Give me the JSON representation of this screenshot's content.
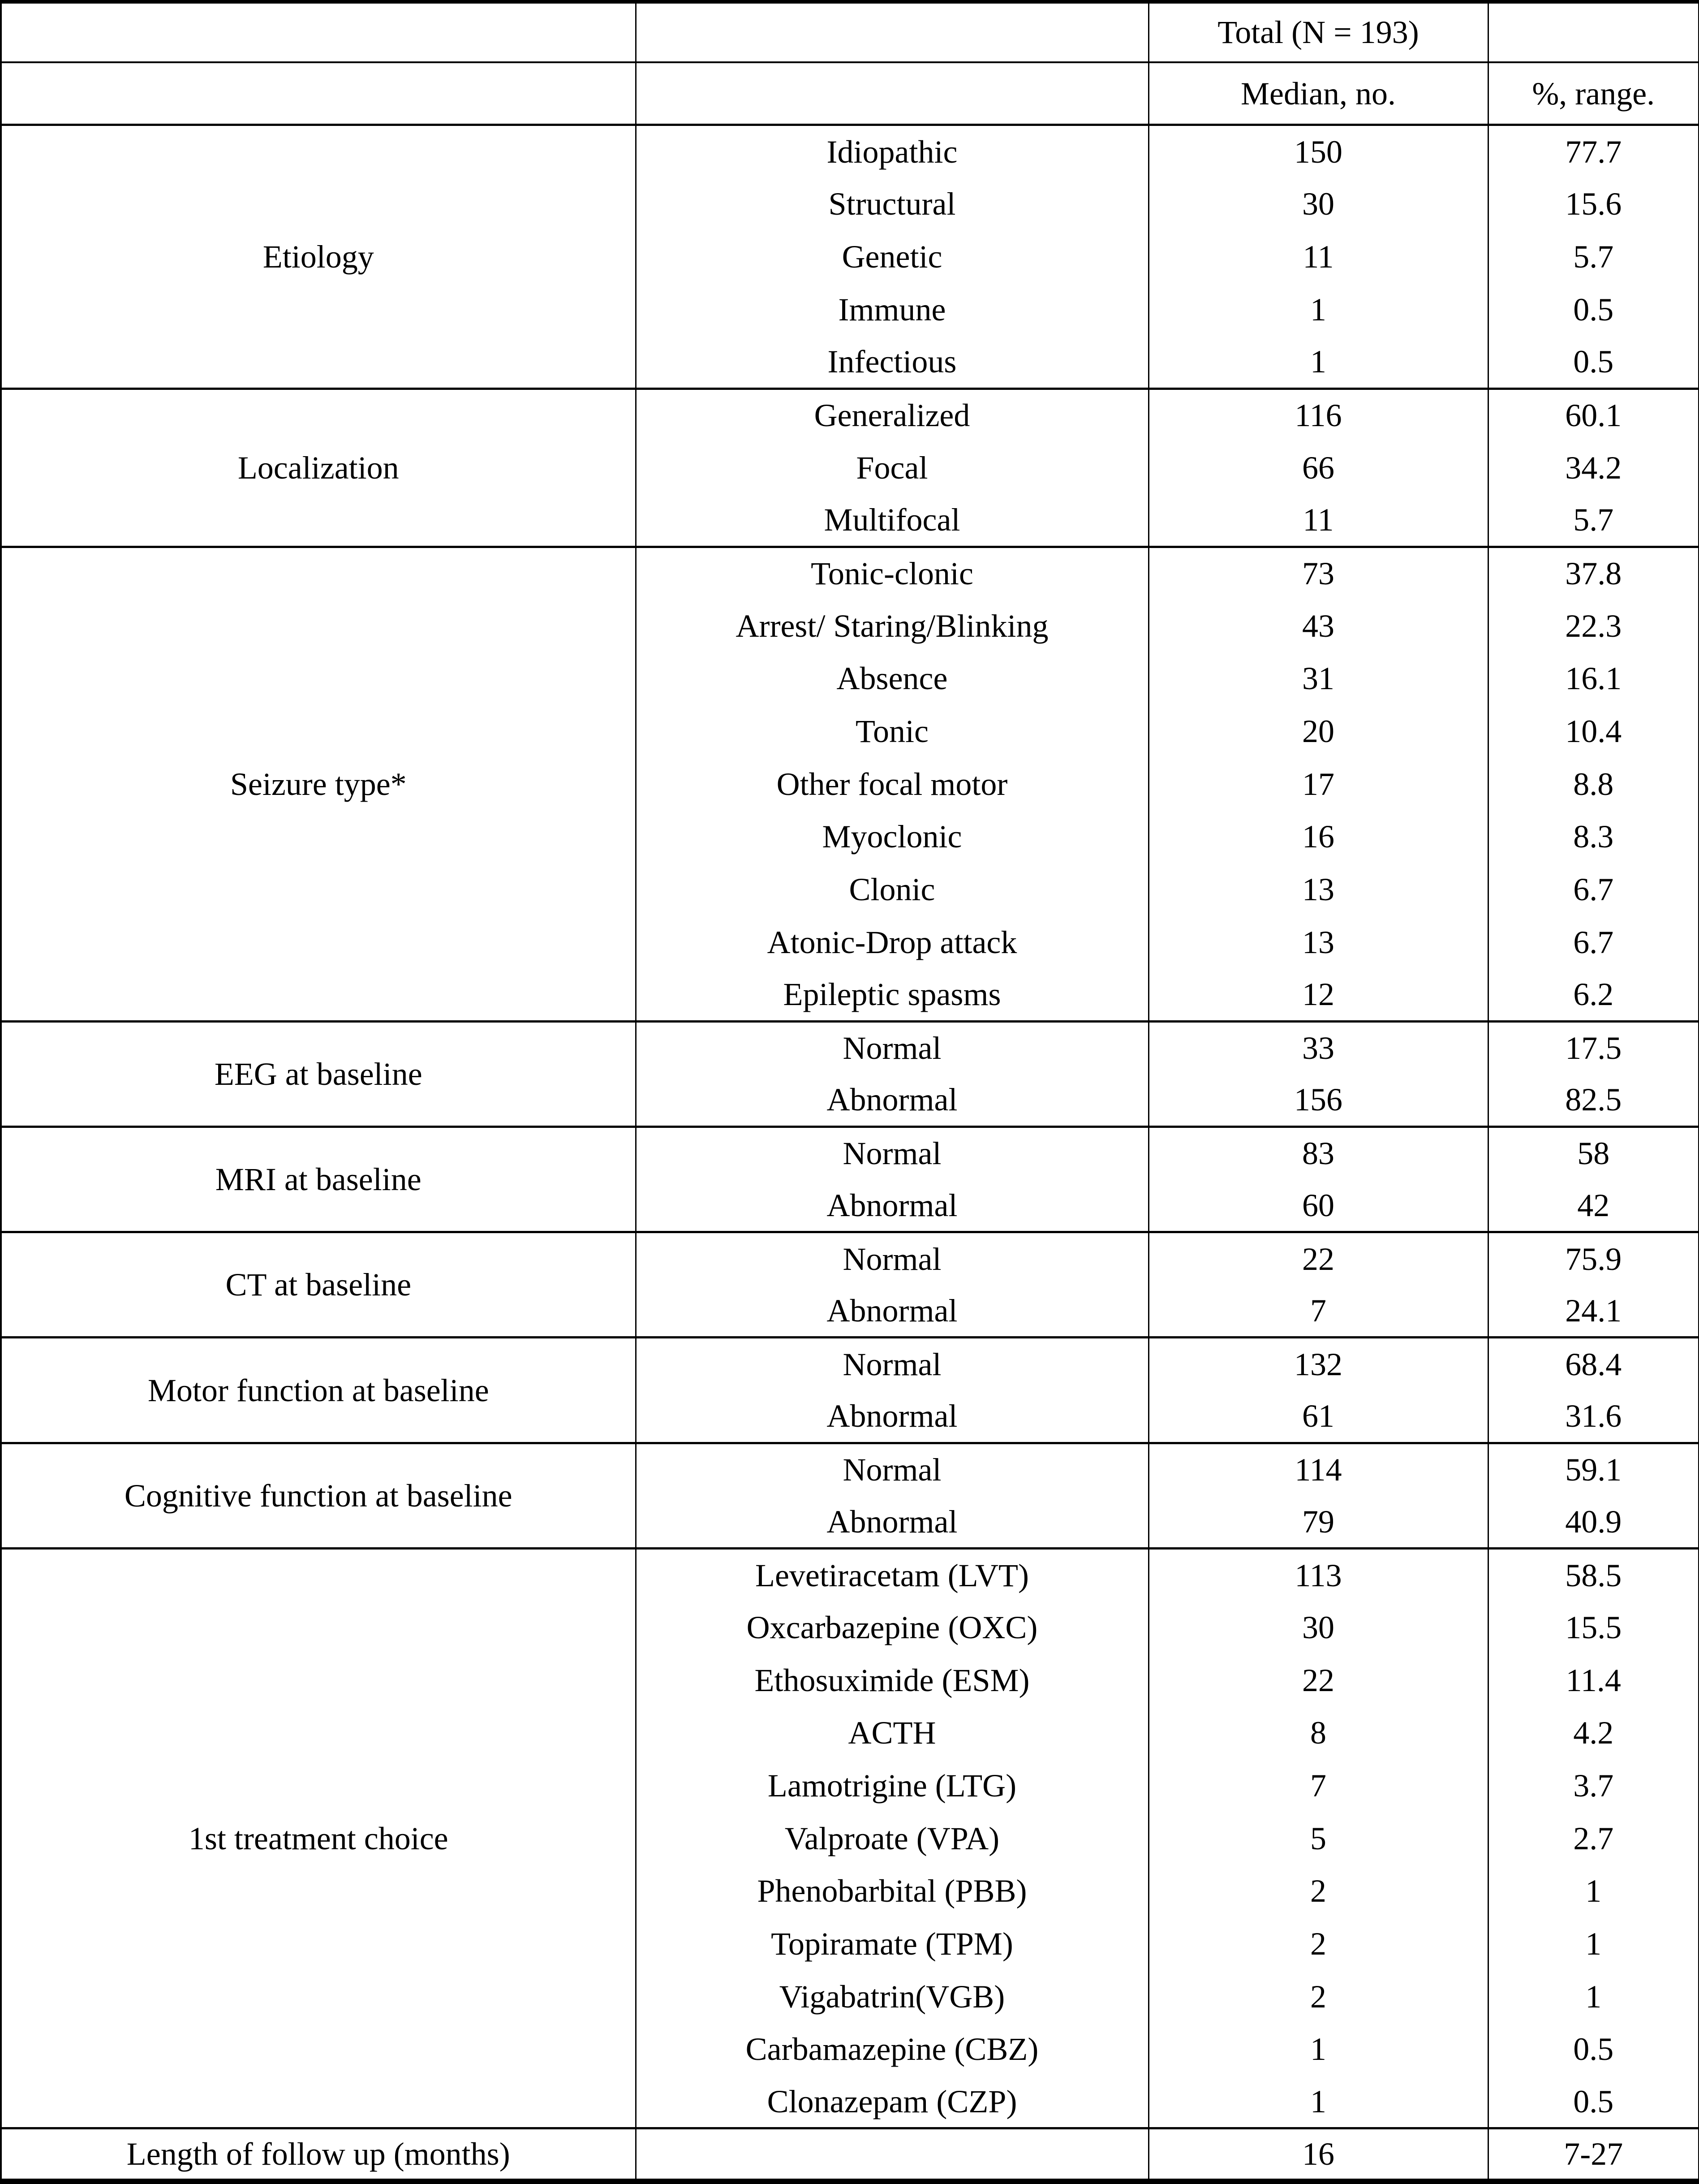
{
  "table": {
    "header": {
      "total_label": "Total (N = 193)",
      "col_median": "Median, no.",
      "col_percent": "%, range."
    },
    "sections": [
      {
        "label": "Etiology",
        "items": [
          {
            "label": "Idiopathic",
            "n": "150",
            "pct": "77.7"
          },
          {
            "label": "Structural",
            "n": "30",
            "pct": "15.6"
          },
          {
            "label": "Genetic",
            "n": "11",
            "pct": "5.7"
          },
          {
            "label": "Immune",
            "n": "1",
            "pct": "0.5"
          },
          {
            "label": "Infectious",
            "n": "1",
            "pct": "0.5"
          }
        ]
      },
      {
        "label": "Localization",
        "items": [
          {
            "label": "Generalized",
            "n": "116",
            "pct": "60.1"
          },
          {
            "label": "Focal",
            "n": "66",
            "pct": "34.2"
          },
          {
            "label": "Multifocal",
            "n": "11",
            "pct": "5.7"
          }
        ]
      },
      {
        "label": "Seizure type*",
        "items": [
          {
            "label": "Tonic-clonic",
            "n": "73",
            "pct": "37.8"
          },
          {
            "label": "Arrest/ Staring/Blinking",
            "n": "43",
            "pct": "22.3"
          },
          {
            "label": "Absence",
            "n": "31",
            "pct": "16.1"
          },
          {
            "label": "Tonic",
            "n": "20",
            "pct": "10.4"
          },
          {
            "label": "Other focal motor",
            "n": "17",
            "pct": "8.8"
          },
          {
            "label": "Myoclonic",
            "n": "16",
            "pct": "8.3"
          },
          {
            "label": "Clonic",
            "n": "13",
            "pct": "6.7"
          },
          {
            "label": "Atonic-Drop attack",
            "n": "13",
            "pct": "6.7"
          },
          {
            "label": "Epileptic spasms",
            "n": "12",
            "pct": "6.2"
          }
        ]
      },
      {
        "label": "EEG at baseline",
        "items": [
          {
            "label": "Normal",
            "n": "33",
            "pct": "17.5"
          },
          {
            "label": "Abnormal",
            "n": "156",
            "pct": "82.5"
          }
        ]
      },
      {
        "label": "MRI at baseline",
        "items": [
          {
            "label": "Normal",
            "n": "83",
            "pct": "58"
          },
          {
            "label": "Abnormal",
            "n": "60",
            "pct": "42"
          }
        ]
      },
      {
        "label": "CT at baseline",
        "items": [
          {
            "label": "Normal",
            "n": "22",
            "pct": "75.9"
          },
          {
            "label": "Abnormal",
            "n": "7",
            "pct": "24.1"
          }
        ]
      },
      {
        "label": "Motor function at baseline",
        "items": [
          {
            "label": "Normal",
            "n": "132",
            "pct": "68.4"
          },
          {
            "label": "Abnormal",
            "n": "61",
            "pct": "31.6"
          }
        ]
      },
      {
        "label": "Cognitive function at baseline",
        "items": [
          {
            "label": "Normal",
            "n": "114",
            "pct": "59.1"
          },
          {
            "label": "Abnormal",
            "n": "79",
            "pct": "40.9"
          }
        ]
      },
      {
        "label": "1st treatment choice",
        "items": [
          {
            "label": "Levetiracetam (LVT)",
            "n": "113",
            "pct": "58.5"
          },
          {
            "label": "Oxcarbazepine (OXC)",
            "n": "30",
            "pct": "15.5"
          },
          {
            "label": "Ethosuximide (ESM)",
            "n": "22",
            "pct": "11.4"
          },
          {
            "label": "ACTH",
            "n": "8",
            "pct": "4.2"
          },
          {
            "label": "Lamotrigine (LTG)",
            "n": "7",
            "pct": "3.7"
          },
          {
            "label": "Valproate (VPA)",
            "n": "5",
            "pct": "2.7"
          },
          {
            "label": "Phenobarbital (PBB)",
            "n": "2",
            "pct": "1"
          },
          {
            "label": "Topiramate (TPM)",
            "n": "2",
            "pct": "1"
          },
          {
            "label": "Vigabatrin(VGB)",
            "n": "2",
            "pct": "1"
          },
          {
            "label": "Carbamazepine (CBZ)",
            "n": "1",
            "pct": "0.5"
          },
          {
            "label": "Clonazepam (CZP)",
            "n": "1",
            "pct": "0.5"
          }
        ]
      },
      {
        "label": "Length of follow up (months)",
        "items": [
          {
            "label": "",
            "n": "16",
            "pct": "7-27"
          }
        ]
      }
    ]
  }
}
